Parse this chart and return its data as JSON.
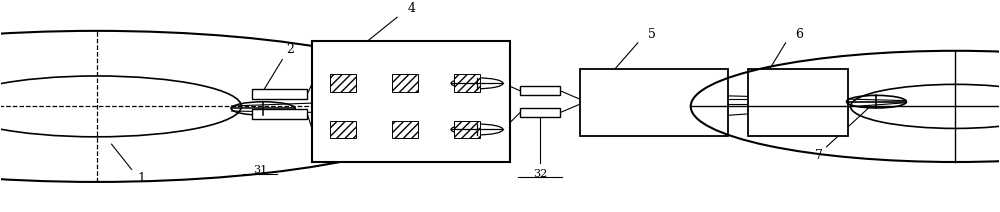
{
  "bg_color": "#ffffff",
  "line_color": "#000000",
  "fig_width": 10.0,
  "fig_height": 2.12,
  "dpi": 100
}
